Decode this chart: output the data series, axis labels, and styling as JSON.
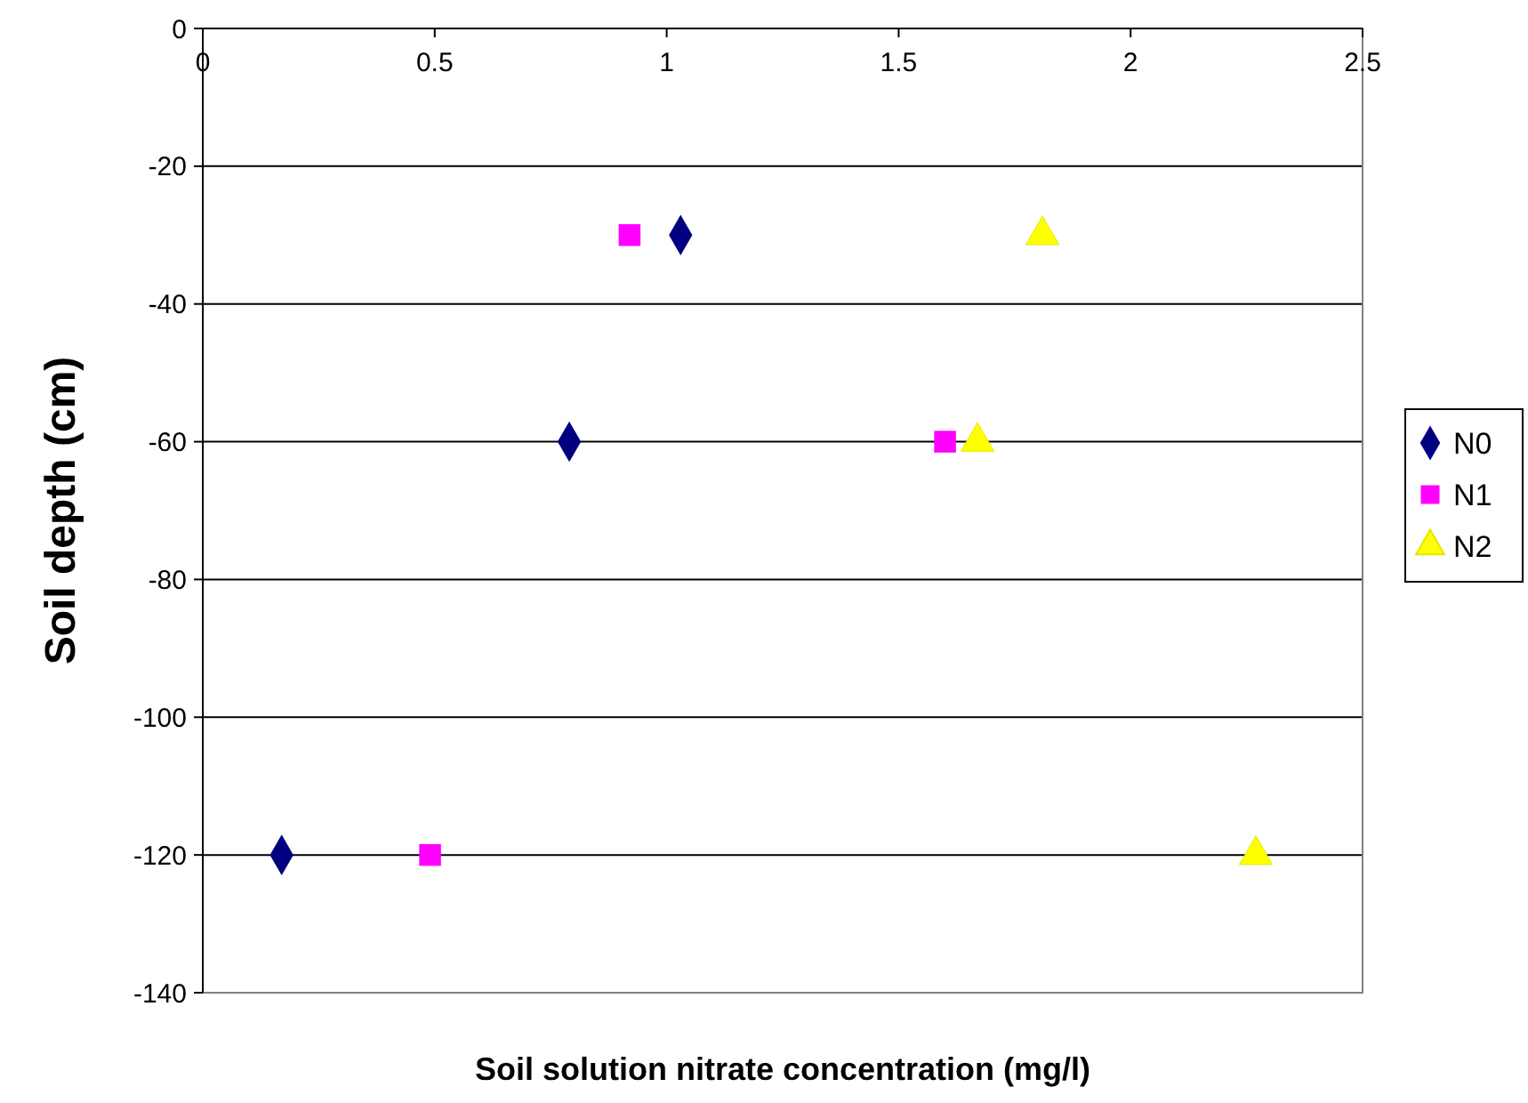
{
  "chart_data": {
    "type": "scatter",
    "xlabel": "Soil solution nitrate concentration (mg/l)",
    "ylabel": "Soil depth (cm)",
    "xlim": [
      0,
      2.5
    ],
    "xticks": [
      0,
      0.5,
      1,
      1.5,
      2,
      2.5
    ],
    "ylim": [
      -140,
      0
    ],
    "yticks": [
      -140,
      -120,
      -100,
      -80,
      -60,
      -40,
      -20,
      0
    ],
    "grid": "y",
    "legend": "right",
    "series": [
      {
        "name": "N0",
        "color": "#000080",
        "marker": "diamond",
        "x": [
          1.03,
          0.79,
          0.17
        ],
        "values": [
          -30,
          -60,
          -120
        ]
      },
      {
        "name": "N1",
        "color": "#ff00ff",
        "marker": "square",
        "x": [
          0.92,
          1.6,
          0.49
        ],
        "values": [
          -30,
          -60,
          -120
        ]
      },
      {
        "name": "N2",
        "color": "#ffff00",
        "marker": "triangle",
        "x": [
          1.81,
          1.67,
          2.27
        ],
        "values": [
          -30,
          -60,
          -120
        ]
      }
    ]
  }
}
